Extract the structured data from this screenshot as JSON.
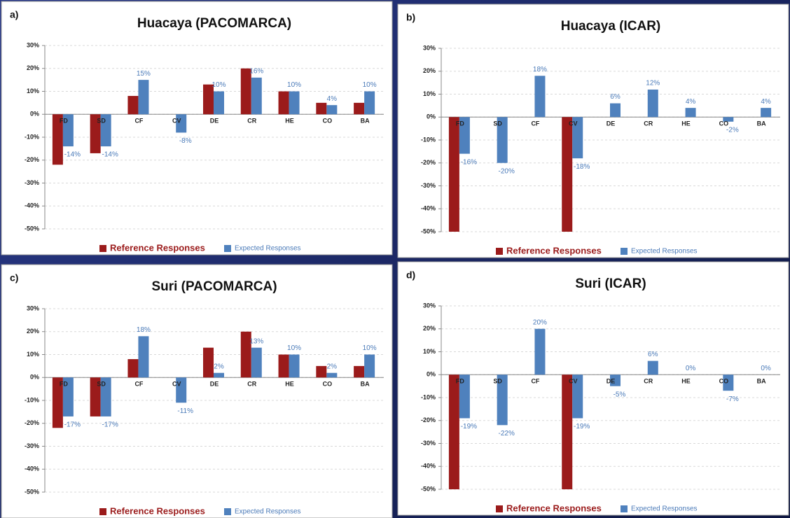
{
  "chart_data": [
    {
      "type": "bar",
      "label": "a)",
      "title": "Huacaya (PACOMARCA)",
      "categories": [
        "FD",
        "SD",
        "CF",
        "CV",
        "DE",
        "CR",
        "HE",
        "CO",
        "BA"
      ],
      "series": [
        {
          "name": "Reference Responses",
          "color": "#9b1b1b",
          "values": [
            -22,
            -17,
            8,
            0,
            13,
            20,
            10,
            5,
            5
          ]
        },
        {
          "name": "Expected Responses",
          "color": "#4f81bd",
          "values": [
            -14,
            -14,
            15,
            -8,
            10,
            16,
            10,
            4,
            10
          ],
          "value_labels": [
            "-14%",
            "-14%",
            "15%",
            "-8%",
            "10%",
            "16%",
            "10%",
            "4%",
            "10%"
          ]
        }
      ],
      "ylim": [
        -50,
        30
      ],
      "yticks": [
        {
          "value": -50,
          "label": "-50%"
        },
        {
          "value": -40,
          "label": "-40%"
        },
        {
          "value": -30,
          "label": "-30%"
        },
        {
          "value": -20,
          "label": "-20%"
        },
        {
          "value": -10,
          "label": "-10%"
        },
        {
          "value": 0,
          "label": "0%"
        },
        {
          "value": 10,
          "label": "10%"
        },
        {
          "value": 20,
          "label": "20%"
        },
        {
          "value": 30,
          "label": "30%"
        }
      ],
      "grid": true
    },
    {
      "type": "bar",
      "label": "b)",
      "title": "Huacaya (ICAR)",
      "categories": [
        "FD",
        "SD",
        "CF",
        "CV",
        "DE",
        "CR",
        "HE",
        "CO",
        "BA"
      ],
      "series": [
        {
          "name": "Reference Responses",
          "color": "#9b1b1b",
          "values": [
            -50,
            0,
            0,
            -50,
            0,
            0,
            0,
            0,
            0
          ]
        },
        {
          "name": "Expected Responses",
          "color": "#4f81bd",
          "values": [
            -16,
            -20,
            18,
            -18,
            6,
            12,
            4,
            -2,
            4
          ],
          "value_labels": [
            "-16%",
            "-20%",
            "18%",
            "-18%",
            "6%",
            "12%",
            "4%",
            "-2%",
            "4%"
          ]
        }
      ],
      "ylim": [
        -50,
        30
      ],
      "yticks": [
        {
          "value": -50,
          "label": "-50%"
        },
        {
          "value": -40,
          "label": "-40%"
        },
        {
          "value": -30,
          "label": "-30%"
        },
        {
          "value": -20,
          "label": "-20%"
        },
        {
          "value": -10,
          "label": "-10%"
        },
        {
          "value": 0,
          "label": "0%"
        },
        {
          "value": 10,
          "label": "10%"
        },
        {
          "value": 20,
          "label": "20%"
        },
        {
          "value": 30,
          "label": "30%"
        }
      ],
      "grid": true
    },
    {
      "type": "bar",
      "label": "c)",
      "title": "Suri (PACOMARCA)",
      "categories": [
        "FD",
        "SD",
        "CF",
        "CV",
        "DE",
        "CR",
        "HE",
        "CO",
        "BA"
      ],
      "series": [
        {
          "name": "Reference Responses",
          "color": "#9b1b1b",
          "values": [
            -22,
            -17,
            8,
            0,
            13,
            20,
            10,
            5,
            5
          ]
        },
        {
          "name": "Expected Responses",
          "color": "#4f81bd",
          "values": [
            -17,
            -17,
            18,
            -11,
            2,
            13,
            10,
            2,
            10
          ],
          "value_labels": [
            "-17%",
            "-17%",
            "18%",
            "-11%",
            "2%",
            "13%",
            "10%",
            "2%",
            "10%"
          ]
        }
      ],
      "ylim": [
        -50,
        30
      ],
      "yticks": [
        {
          "value": -50,
          "label": "-50%"
        },
        {
          "value": -40,
          "label": "-40%"
        },
        {
          "value": -30,
          "label": "-30%"
        },
        {
          "value": -20,
          "label": "-20%"
        },
        {
          "value": -10,
          "label": "-10%"
        },
        {
          "value": 0,
          "label": "0%"
        },
        {
          "value": 10,
          "label": "10%"
        },
        {
          "value": 20,
          "label": "20%"
        },
        {
          "value": 30,
          "label": "30%"
        }
      ],
      "grid": true
    },
    {
      "type": "bar",
      "label": "d)",
      "title": "Suri (ICAR)",
      "categories": [
        "FD",
        "SD",
        "CF",
        "CV",
        "DE",
        "CR",
        "HE",
        "CO",
        "BA"
      ],
      "series": [
        {
          "name": "Reference Responses",
          "color": "#9b1b1b",
          "values": [
            -50,
            0,
            0,
            -50,
            0,
            0,
            0,
            0,
            0
          ]
        },
        {
          "name": "Expected Responses",
          "color": "#4f81bd",
          "values": [
            -19,
            -22,
            20,
            -19,
            -5,
            6,
            0,
            -7,
            0
          ],
          "value_labels": [
            "-19%",
            "-22%",
            "20%",
            "-19%",
            "-5%",
            "6%",
            "0%",
            "-7%",
            "0%"
          ]
        }
      ],
      "ylim": [
        -50,
        30
      ],
      "yticks": [
        {
          "value": -50,
          "label": "-50%"
        },
        {
          "value": -40,
          "label": "-40%"
        },
        {
          "value": -30,
          "label": "-30%"
        },
        {
          "value": -20,
          "label": "-20%"
        },
        {
          "value": -10,
          "label": "-10%"
        },
        {
          "value": 0,
          "label": "0%"
        },
        {
          "value": 10,
          "label": "10%"
        },
        {
          "value": 20,
          "label": "20%"
        },
        {
          "value": 30,
          "label": "30%"
        }
      ],
      "grid": true
    }
  ]
}
